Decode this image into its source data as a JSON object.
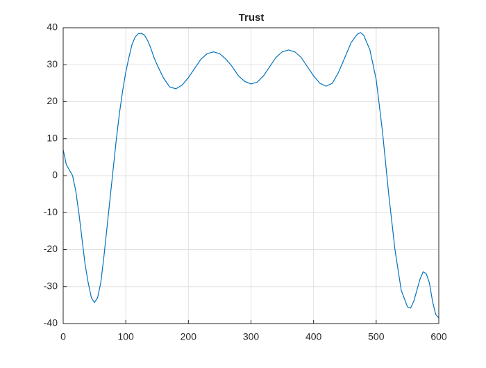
{
  "chart_data": {
    "type": "line",
    "title": "Trust",
    "x": [
      0,
      5,
      10,
      15,
      20,
      25,
      30,
      35,
      40,
      45,
      50,
      55,
      60,
      65,
      70,
      75,
      80,
      85,
      90,
      95,
      100,
      105,
      110,
      115,
      120,
      125,
      130,
      135,
      140,
      145,
      150,
      160,
      170,
      180,
      190,
      200,
      210,
      220,
      230,
      240,
      250,
      260,
      270,
      280,
      290,
      300,
      310,
      320,
      330,
      340,
      350,
      360,
      370,
      380,
      390,
      400,
      410,
      420,
      430,
      440,
      450,
      460,
      470,
      475,
      480,
      490,
      500,
      510,
      520,
      530,
      540,
      550,
      555,
      560,
      570,
      575,
      580,
      585,
      590,
      595,
      600
    ],
    "series": [
      {
        "name": "Trust",
        "color": "#0072bd",
        "values": [
          7,
          3,
          1.5,
          0,
          -4,
          -10,
          -17,
          -24,
          -29,
          -33,
          -34.3,
          -33,
          -29,
          -22,
          -14,
          -6,
          2,
          10,
          17,
          23,
          28,
          32,
          35.5,
          37.5,
          38.4,
          38.5,
          38,
          36.5,
          34.5,
          32,
          30,
          26.5,
          24,
          23.5,
          24.5,
          26.5,
          29,
          31.5,
          33,
          33.5,
          33,
          31.5,
          29.5,
          27,
          25.5,
          24.8,
          25.3,
          27,
          29.5,
          32,
          33.5,
          34,
          33.5,
          32,
          29.5,
          27,
          25,
          24.2,
          25,
          28,
          32,
          36,
          38.3,
          38.7,
          38,
          34,
          26,
          12,
          -5,
          -20,
          -31,
          -35.5,
          -35.8,
          -34,
          -28,
          -26,
          -26.5,
          -29,
          -34,
          -37.5,
          -38.5
        ]
      }
    ],
    "xlim": [
      0,
      600
    ],
    "ylim": [
      -40,
      40
    ],
    "xticks": [
      0,
      100,
      200,
      300,
      400,
      500,
      600
    ],
    "yticks": [
      -40,
      -30,
      -20,
      -10,
      0,
      10,
      20,
      30,
      40
    ],
    "grid": true
  }
}
